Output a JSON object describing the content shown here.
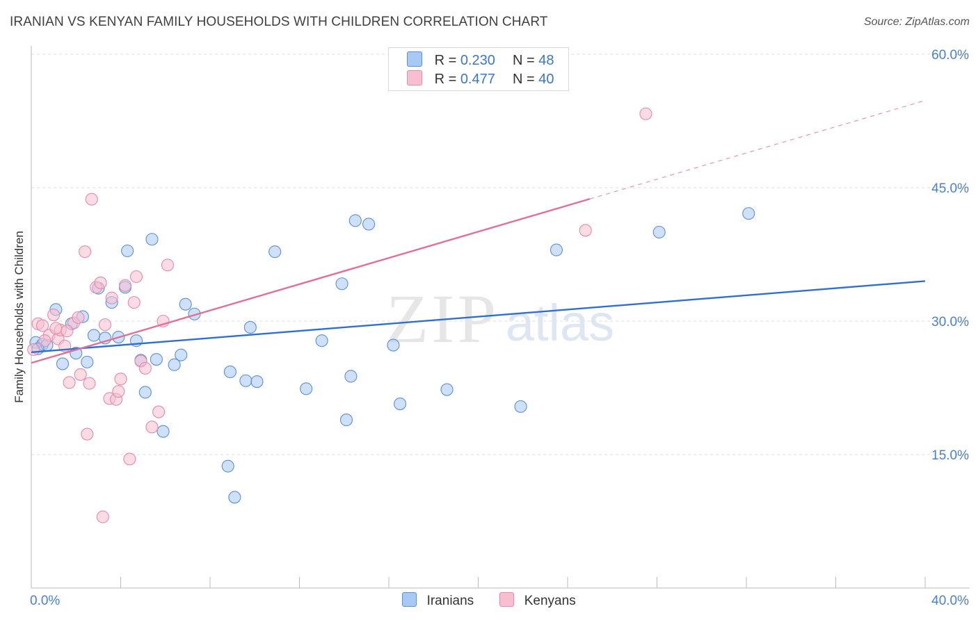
{
  "title": "IRANIAN VS KENYAN FAMILY HOUSEHOLDS WITH CHILDREN CORRELATION CHART",
  "source": "Source: ZipAtlas.com",
  "watermark": {
    "zip": "ZIP",
    "atlas": "atlas"
  },
  "legend_top": {
    "rows": [
      {
        "r_label": "R =",
        "r_value": "0.230",
        "n_label": "N =",
        "n_value": "48",
        "color": "#a8c8f5",
        "border": "#5b8fd6"
      },
      {
        "r_label": "R =",
        "r_value": "0.477",
        "n_label": "N =",
        "n_value": "40",
        "color": "#f7bfd0",
        "border": "#e58aa8"
      }
    ]
  },
  "legend_bottom": [
    {
      "label": "Iranians",
      "color": "#a8c8f5",
      "border": "#5b8fd6"
    },
    {
      "label": "Kenyans",
      "color": "#f7bfd0",
      "border": "#e58aa8"
    }
  ],
  "chart_data": {
    "type": "scatter",
    "title": "IRANIAN VS KENYAN FAMILY HOUSEHOLDS WITH CHILDREN CORRELATION CHART",
    "xlabel": "",
    "ylabel": "Family Households with Children",
    "xlim": [
      0,
      40
    ],
    "ylim": [
      0,
      60
    ],
    "x_tick_labels": [
      {
        "value": 0,
        "label": "0.0%"
      },
      {
        "value": 40,
        "label": "40.0%"
      }
    ],
    "y_tick_labels": [
      {
        "value": 15,
        "label": "15.0%"
      },
      {
        "value": 30,
        "label": "30.0%"
      },
      {
        "value": 45,
        "label": "45.0%"
      },
      {
        "value": 60,
        "label": "60.0%"
      }
    ],
    "grid": true,
    "series": [
      {
        "name": "Iranians",
        "color": "#5b8fd6",
        "fill": "#a8c8f5",
        "line_color": "#2f6fd0",
        "trend": {
          "x0": 0.0,
          "y0": 26.5,
          "x1": 40.0,
          "y1": 34.5,
          "dashed_from": null
        },
        "points": [
          [
            0.2,
            27.6
          ],
          [
            0.5,
            27.4
          ],
          [
            0.7,
            27.3
          ],
          [
            1.1,
            31.3
          ],
          [
            1.4,
            25.2
          ],
          [
            1.8,
            29.7
          ],
          [
            2.0,
            26.4
          ],
          [
            2.3,
            30.5
          ],
          [
            2.5,
            25.4
          ],
          [
            2.8,
            28.4
          ],
          [
            3.0,
            33.7
          ],
          [
            3.3,
            28.1
          ],
          [
            3.6,
            32.1
          ],
          [
            3.9,
            28.2
          ],
          [
            4.2,
            33.8
          ],
          [
            4.3,
            37.9
          ],
          [
            4.7,
            27.8
          ],
          [
            4.9,
            25.6
          ],
          [
            5.1,
            22.0
          ],
          [
            5.4,
            39.2
          ],
          [
            5.6,
            25.7
          ],
          [
            5.9,
            17.6
          ],
          [
            6.4,
            25.1
          ],
          [
            6.7,
            26.2
          ],
          [
            6.9,
            31.9
          ],
          [
            7.3,
            30.8
          ],
          [
            8.8,
            13.7
          ],
          [
            8.9,
            24.3
          ],
          [
            9.1,
            10.2
          ],
          [
            9.6,
            23.3
          ],
          [
            9.8,
            29.3
          ],
          [
            10.1,
            23.2
          ],
          [
            10.9,
            37.8
          ],
          [
            12.3,
            22.4
          ],
          [
            13.0,
            27.8
          ],
          [
            13.9,
            34.2
          ],
          [
            14.1,
            18.9
          ],
          [
            14.3,
            23.8
          ],
          [
            14.5,
            41.3
          ],
          [
            15.1,
            40.9
          ],
          [
            16.2,
            27.3
          ],
          [
            16.5,
            20.7
          ],
          [
            18.6,
            22.3
          ],
          [
            21.9,
            20.4
          ],
          [
            23.5,
            38.0
          ],
          [
            28.1,
            40.0
          ],
          [
            32.1,
            42.1
          ],
          [
            0.3,
            26.9
          ]
        ]
      },
      {
        "name": "Kenyans",
        "color": "#e58aa8",
        "fill": "#f7bfd0",
        "line_color": "#e0709a",
        "trend": {
          "x0": 0.0,
          "y0": 25.3,
          "x1": 40.0,
          "y1": 54.8,
          "dashed_from": 25.0
        },
        "points": [
          [
            0.1,
            26.8
          ],
          [
            0.3,
            29.7
          ],
          [
            0.5,
            29.5
          ],
          [
            0.8,
            28.4
          ],
          [
            1.0,
            30.7
          ],
          [
            1.2,
            28.0
          ],
          [
            1.3,
            29.0
          ],
          [
            1.5,
            27.2
          ],
          [
            1.7,
            23.1
          ],
          [
            1.9,
            29.8
          ],
          [
            2.1,
            30.4
          ],
          [
            2.2,
            24.0
          ],
          [
            2.5,
            17.3
          ],
          [
            2.6,
            23.0
          ],
          [
            2.7,
            43.7
          ],
          [
            2.9,
            33.8
          ],
          [
            3.1,
            34.3
          ],
          [
            3.2,
            8.0
          ],
          [
            3.3,
            29.6
          ],
          [
            3.5,
            21.3
          ],
          [
            3.6,
            32.6
          ],
          [
            3.8,
            21.2
          ],
          [
            4.0,
            23.5
          ],
          [
            4.2,
            34.0
          ],
          [
            4.4,
            14.5
          ],
          [
            4.6,
            32.1
          ],
          [
            4.9,
            25.5
          ],
          [
            5.1,
            24.7
          ],
          [
            5.4,
            18.1
          ],
          [
            5.7,
            19.8
          ],
          [
            5.9,
            30.0
          ],
          [
            6.1,
            36.3
          ],
          [
            0.6,
            27.8
          ],
          [
            1.1,
            29.2
          ],
          [
            2.4,
            37.8
          ],
          [
            3.9,
            22.1
          ],
          [
            4.7,
            35.0
          ],
          [
            24.8,
            40.2
          ],
          [
            27.5,
            53.3
          ],
          [
            1.6,
            28.9
          ]
        ]
      }
    ]
  }
}
